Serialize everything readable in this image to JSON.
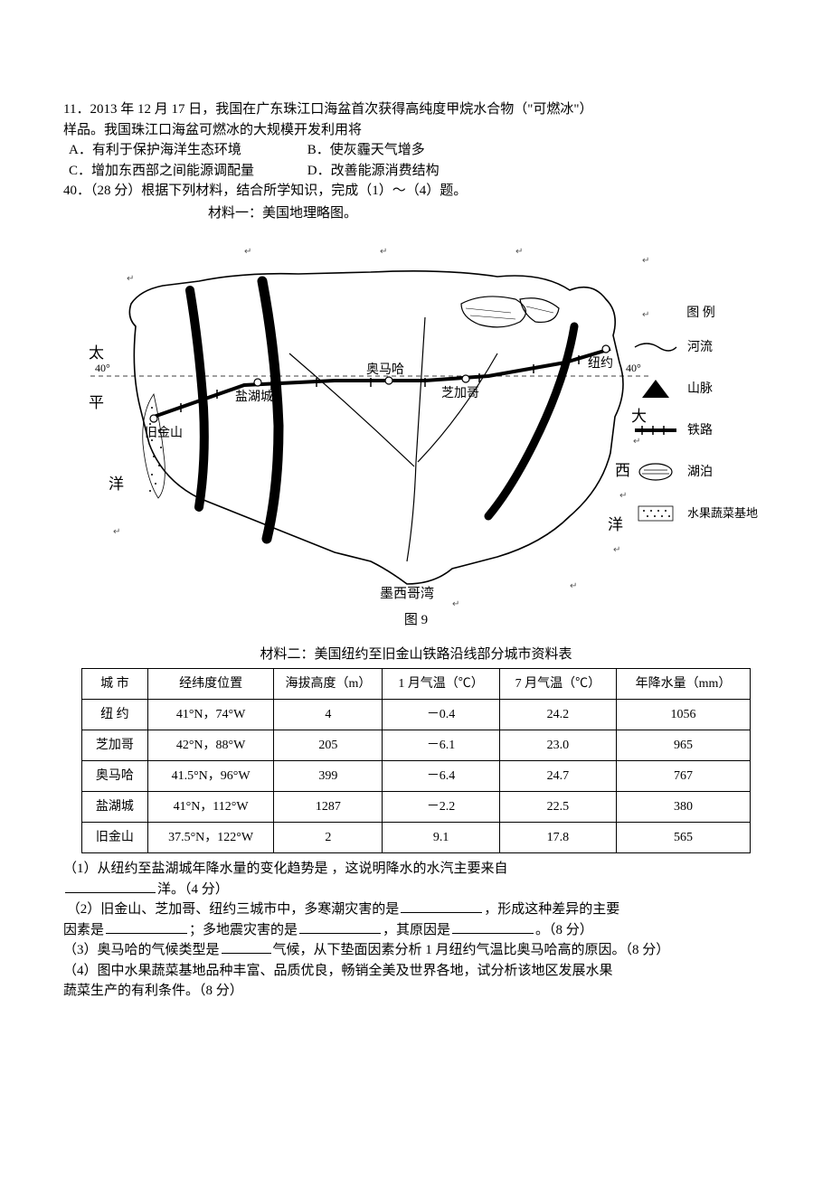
{
  "q11": {
    "num": "11．",
    "line1": "2013 年 12 月 17 日，我国在广东珠江口海盆首次获得高纯度甲烷水合物（\"可燃冰\"）",
    "line2": "样品。我国珠江口海盆可燃冰的大规模开发利用将",
    "optA": "A．有利于保护海洋生态环境",
    "optB": "B．使灰霾天气增多",
    "optC": "C．增加东西部之间能源调配量",
    "optD": "D．改善能源消费结构"
  },
  "q40": {
    "num": "40．",
    "stem": "（28 分）根据下列材料，结合所学知识，完成（1）～（4）题。",
    "mat1_title": "材料一：美国地理略图。",
    "fig_caption": "图 9",
    "mat2_title": "材料二：美国纽约至旧金山铁路沿线部分城市资料表"
  },
  "map_labels": {
    "tai": "太",
    "ping": "平",
    "yang_w": "洋",
    "da": "大",
    "xi": "西",
    "yang_e": "洋",
    "mexico": "墨西哥湾",
    "sf": "旧金山",
    "slc": "盐湖城",
    "omaha": "奥马哈",
    "chicago": "芝加哥",
    "ny": "纽约",
    "lat40": "40°"
  },
  "legend": {
    "title": "图 例",
    "river": "河流",
    "mountain": "山脉",
    "railway": "铁路",
    "lake": "湖泊",
    "fruit": "水果蔬菜基地"
  },
  "table": {
    "columns": [
      "城 市",
      "经纬度位置",
      "海拔高度（m）",
      "1 月气温（℃）",
      "7 月气温（℃）",
      "年降水量（mm）"
    ],
    "rows": [
      [
        "纽 约",
        "41°N，74°W",
        "4",
        "－0.4",
        "24.2",
        "1056"
      ],
      [
        "芝加哥",
        "42°N，88°W",
        "205",
        "－6.1",
        "23.0",
        "965"
      ],
      [
        "奥马哈",
        "41.5°N，96°W",
        "399",
        "－6.4",
        "24.7",
        "767"
      ],
      [
        "盐湖城",
        "41°N，112°W",
        "1287",
        "－2.2",
        "22.5",
        "380"
      ],
      [
        "旧金山",
        "37.5°N，122°W",
        "2",
        "9.1",
        "17.8",
        "565"
      ]
    ],
    "col_widths": [
      "70px",
      "140px",
      "120px",
      "130px",
      "130px",
      "150px"
    ]
  },
  "subq": {
    "q1_a": "（1）从纽约至盐湖城年降水量的变化趋势是",
    "q1_b": "，这说明降水的水汽主要来自",
    "q1_c": "洋。（4 分）",
    "q2_a": "（2）旧金山、芝加哥、纽约三城市中，多寒潮灾害的是",
    "q2_b": "，形成这种差异的主要",
    "q2_line2_a": " 因素是",
    "q2_line2_b": "；多地震灾害的是",
    "q2_line2_c": "，其原因是",
    "q2_line2_d": "。（8 分）",
    "q3_a": "（3）奥马哈的气候类型是",
    "q3_b": "气候，从下垫面因素分析 1 月纽约气温比奥马哈高的原因。（8 分）",
    "q4_a": "（4）图中水果蔬菜基地品种丰富、品质优良，畅销全美及世界各地，试分析该地区发展水果",
    "q4_b": "蔬菜生产的有利条件。（8 分）"
  },
  "style": {
    "blank_w_mid": "90px",
    "blank_w_small": "55px",
    "blank_w_long": "100px"
  }
}
